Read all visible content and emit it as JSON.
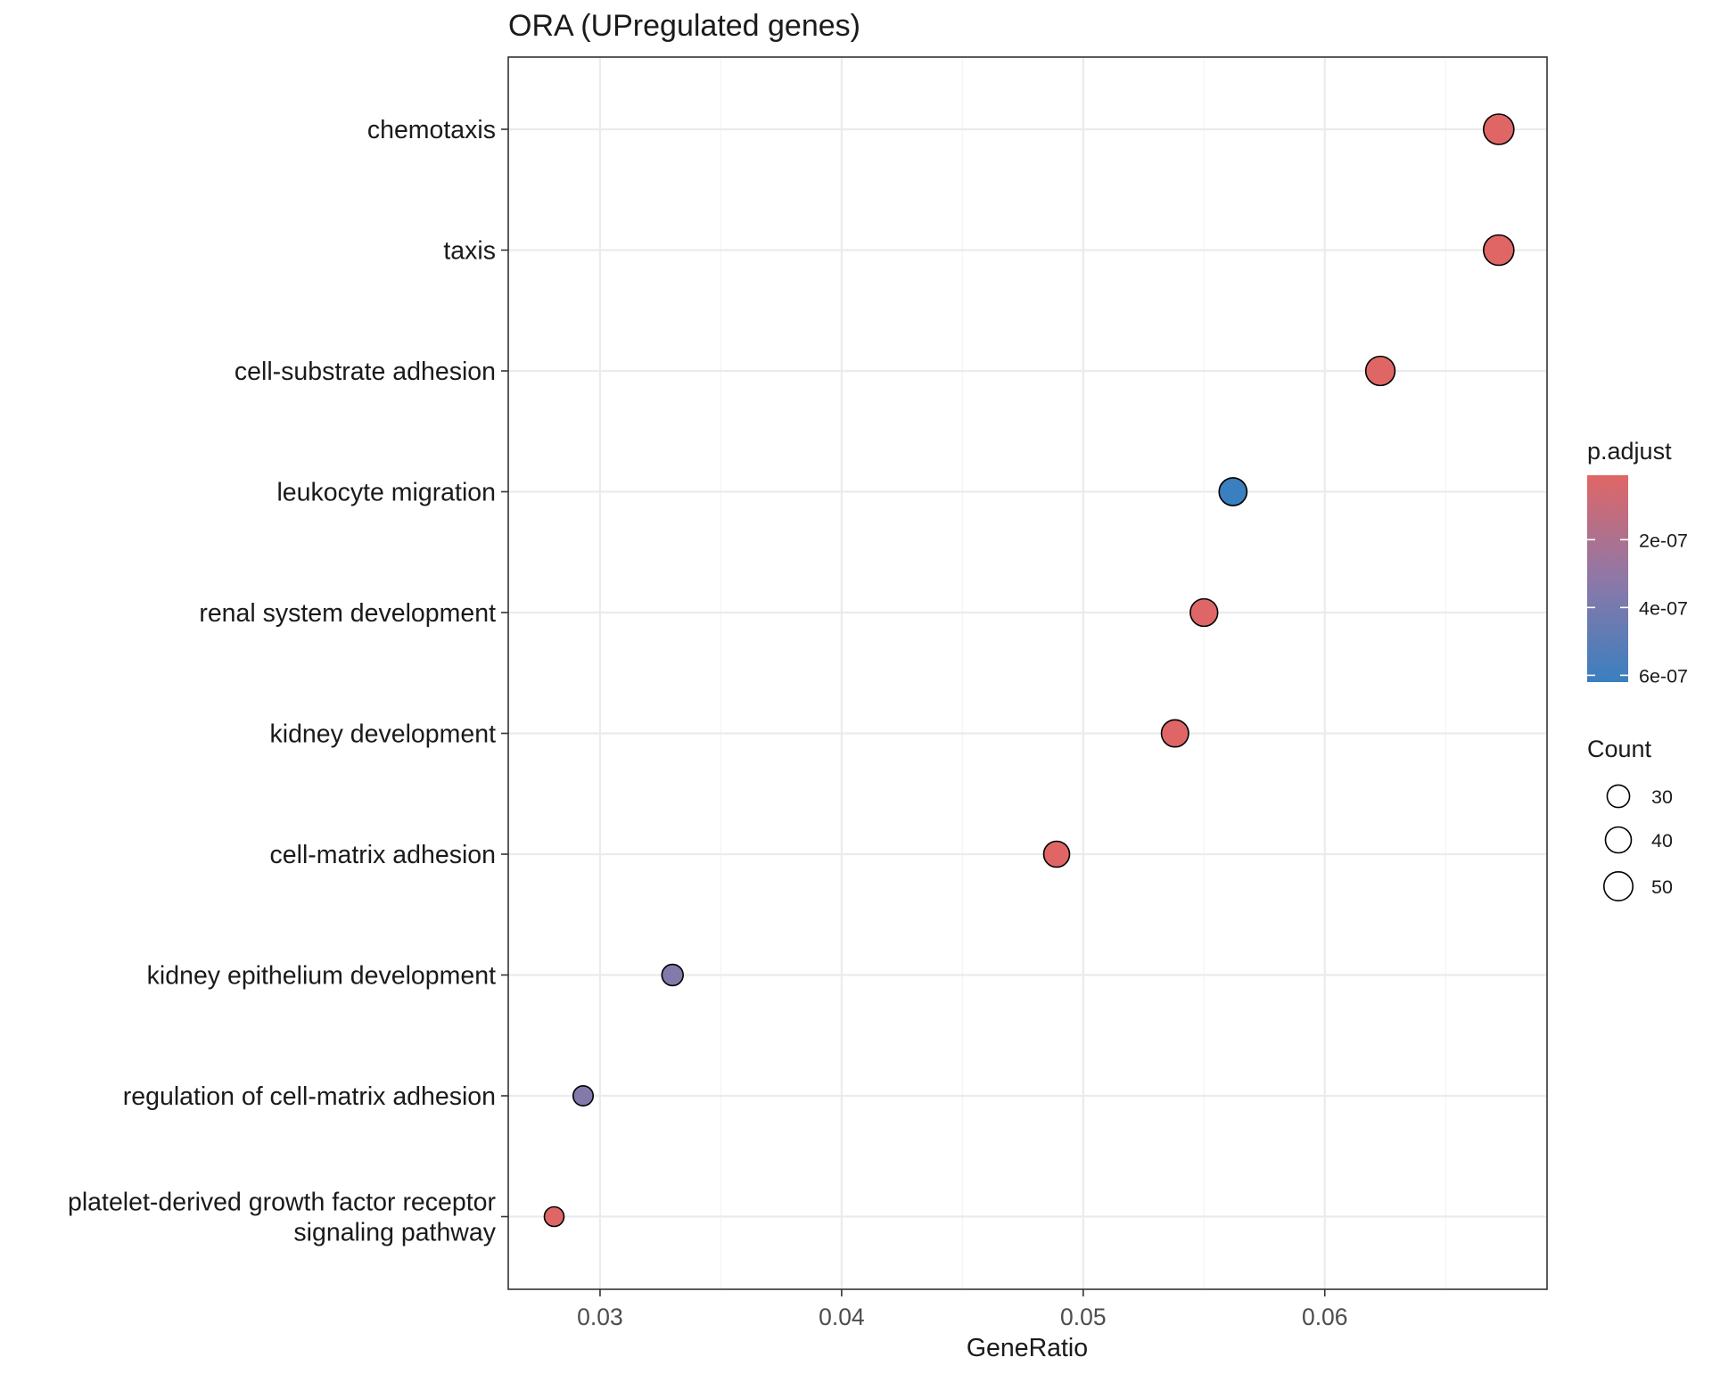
{
  "chart_data": {
    "type": "scatter",
    "title": "ORA (UPregulated genes)",
    "xlabel": "GeneRatio",
    "ylabel": "",
    "xlim": [
      0.0262,
      0.0692
    ],
    "xticks": [
      0.03,
      0.04,
      0.05,
      0.06
    ],
    "xtick_labels": [
      "0.03",
      "0.04",
      "0.05",
      "0.06"
    ],
    "grid": true,
    "categories": [
      "chemotaxis",
      "taxis",
      "cell-substrate adhesion",
      "leukocyte migration",
      "renal system development",
      "kidney development",
      "cell-matrix adhesion",
      "kidney epithelium development",
      "regulation of cell-matrix adhesion",
      "platelet-derived growth factor receptor\nsignaling pathway"
    ],
    "points": [
      {
        "term": "chemotaxis",
        "gene_ratio": 0.0672,
        "count": 55,
        "p_adjust": 1e-08
      },
      {
        "term": "taxis",
        "gene_ratio": 0.0672,
        "count": 55,
        "p_adjust": 1e-08
      },
      {
        "term": "cell-substrate adhesion",
        "gene_ratio": 0.0623,
        "count": 51,
        "p_adjust": 1e-08
      },
      {
        "term": "leukocyte migration",
        "gene_ratio": 0.0562,
        "count": 46,
        "p_adjust": 6.2e-07
      },
      {
        "term": "renal system development",
        "gene_ratio": 0.055,
        "count": 45,
        "p_adjust": 1.5e-08
      },
      {
        "term": "kidney development",
        "gene_ratio": 0.0538,
        "count": 44,
        "p_adjust": 1.5e-08
      },
      {
        "term": "cell-matrix adhesion",
        "gene_ratio": 0.0489,
        "count": 40,
        "p_adjust": 1e-08
      },
      {
        "term": "kidney epithelium development",
        "gene_ratio": 0.033,
        "count": 27,
        "p_adjust": 3.5e-07
      },
      {
        "term": "regulation of cell-matrix adhesion",
        "gene_ratio": 0.0293,
        "count": 24,
        "p_adjust": 3.5e-07
      },
      {
        "term": "platelet-derived growth factor receptor\nsignaling pathway",
        "gene_ratio": 0.0281,
        "count": 23,
        "p_adjust": 1e-08
      }
    ],
    "color_legend": {
      "title": "p.adjust",
      "range": [
        1e-08,
        6.2e-07
      ],
      "low_color": "#e06666",
      "mid_color": "#8e78a8",
      "high_color": "#3a7fbf",
      "breaks": [
        2e-07,
        4e-07,
        6e-07
      ],
      "labels": [
        "2e-07",
        "4e-07",
        "6e-07"
      ]
    },
    "size_legend": {
      "title": "Count",
      "breaks": [
        30,
        40,
        50
      ],
      "labels": [
        "30",
        "40",
        "50"
      ],
      "count_range": [
        23,
        55
      ]
    }
  }
}
